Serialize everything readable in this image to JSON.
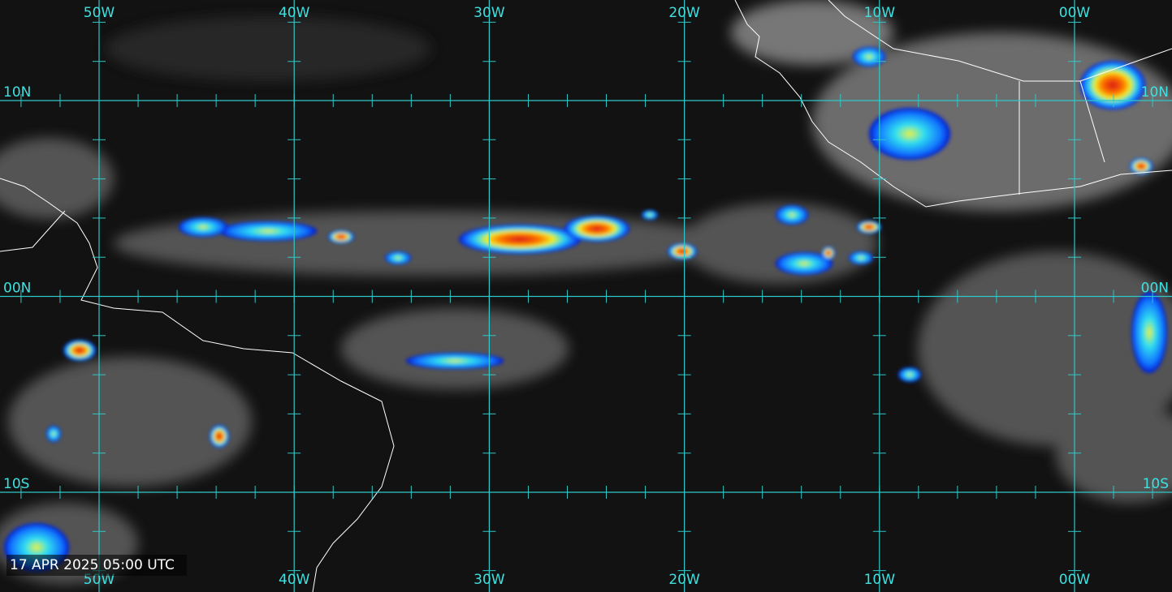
{
  "map": {
    "top_labels": [
      "50W",
      "40W",
      "30W",
      "20W",
      "10W",
      "00W"
    ],
    "bottom_labels": [
      "50W",
      "40W",
      "30W",
      "20W",
      "10W",
      "00W"
    ],
    "left_labels": [
      "10N",
      "00N",
      "10S"
    ],
    "right_labels": [
      "10N",
      "00N",
      "10S"
    ],
    "timestamp": "17 APR 2025 05:00 UTC"
  }
}
